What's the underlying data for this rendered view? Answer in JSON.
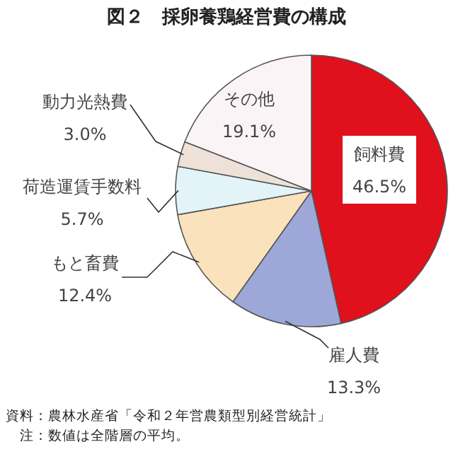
{
  "chart_data": {
    "type": "pie",
    "title": "図２　採卵養鶏経営費の構成",
    "categories": [
      "飼料費",
      "雇人費",
      "もと畜費",
      "荷造運賃手数料",
      "動力光熱費",
      "その他"
    ],
    "values": [
      46.5,
      13.3,
      12.4,
      5.7,
      3.0,
      19.1
    ],
    "value_labels": [
      "46.5%",
      "13.3%",
      "12.4%",
      "5.7%",
      "3.0%",
      "19.1%"
    ],
    "colors": [
      "#e0101c",
      "#9ea8d8",
      "#fae2bc",
      "#e2f4f8",
      "#eee2d8",
      "#fbf4f7"
    ],
    "annotations": [
      "資料：農林水産省「令和２年営農類型別経営統計」",
      "　注：数値は全階層の平均。"
    ]
  }
}
